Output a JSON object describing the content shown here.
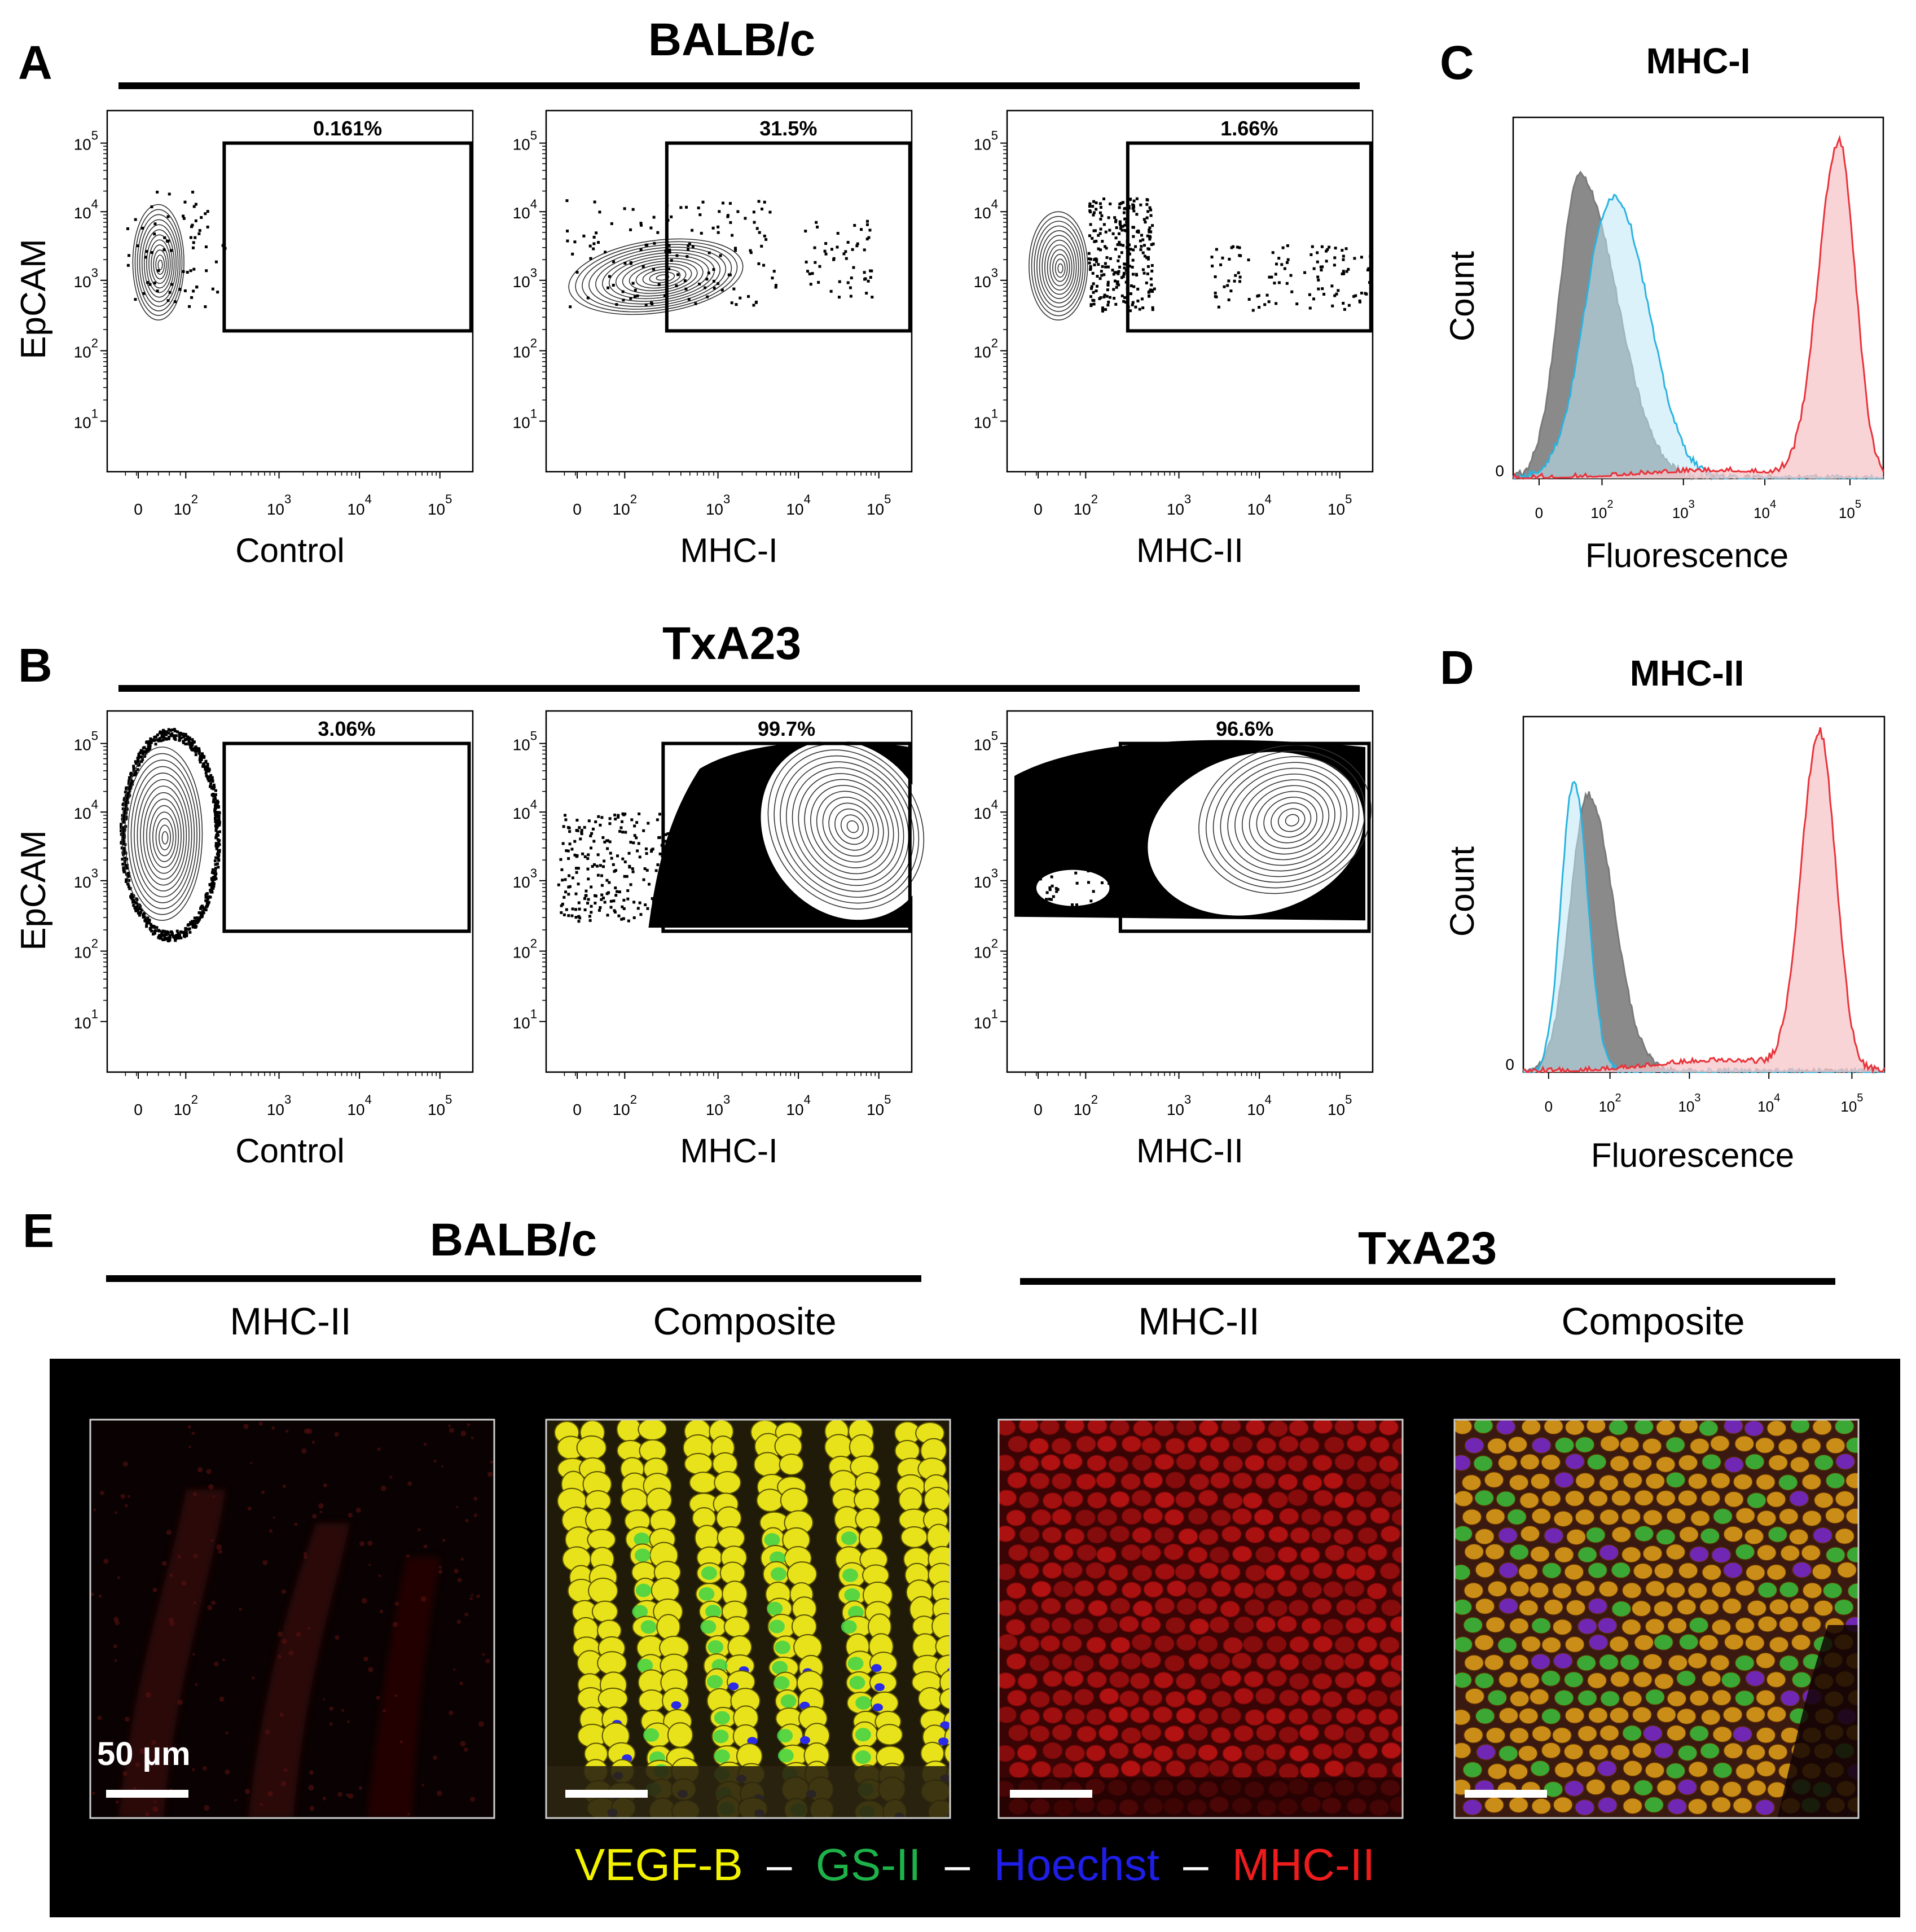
{
  "panels": {
    "A": {
      "letter": "A",
      "strain": "BALB/c",
      "ylabel": "EpCAM",
      "plots": [
        {
          "xlabel": "Control",
          "gate_pct": "0.161%"
        },
        {
          "xlabel": "MHC-I",
          "gate_pct": "31.5%"
        },
        {
          "xlabel": "MHC-II",
          "gate_pct": "1.66%"
        }
      ]
    },
    "B": {
      "letter": "B",
      "strain": "TxA23",
      "ylabel": "EpCAM",
      "plots": [
        {
          "xlabel": "Control",
          "gate_pct": "3.06%"
        },
        {
          "xlabel": "MHC-I",
          "gate_pct": "99.7%"
        },
        {
          "xlabel": "MHC-II",
          "gate_pct": "96.6%"
        }
      ]
    },
    "C": {
      "letter": "C",
      "title": "MHC-I",
      "ylabel": "Count",
      "xlabel": "Fluorescence",
      "zero_label": "0"
    },
    "D": {
      "letter": "D",
      "title": "MHC-II",
      "ylabel": "Count",
      "xlabel": "Fluorescence",
      "zero_label": "0"
    },
    "E": {
      "letter": "E",
      "groups": [
        {
          "strain": "BALB/c",
          "cols": [
            "MHC-II",
            "Composite"
          ]
        },
        {
          "strain": "TxA23",
          "cols": [
            "MHC-II",
            "Composite"
          ]
        }
      ],
      "scale_bar": "50 µm",
      "legend": [
        {
          "text": "VEGF-B",
          "color": "#f2f200"
        },
        {
          "text": "GS-II",
          "color": "#1db24a"
        },
        {
          "text": "Hoechst",
          "color": "#1e1ee8"
        },
        {
          "text": "MHC-II",
          "color": "#ee1c1c"
        }
      ],
      "legend_sep": "–"
    }
  },
  "chart_data": [
    {
      "type": "scatter",
      "title": "BALB/c",
      "subplots": [
        "Control",
        "MHC-I",
        "MHC-II"
      ],
      "ylabel": "EpCAM",
      "x_scale": "log (biexponential)",
      "y_scale": "log (biexponential)",
      "x_ticks": [
        "0",
        "10^2",
        "10^3",
        "10^4",
        "10^5"
      ],
      "y_ticks": [
        "10^1",
        "10^2",
        "10^3",
        "10^4",
        "10^5"
      ],
      "gate_percent": [
        0.161,
        31.5,
        1.66
      ]
    },
    {
      "type": "scatter",
      "title": "TxA23",
      "subplots": [
        "Control",
        "MHC-I",
        "MHC-II"
      ],
      "ylabel": "EpCAM",
      "x_scale": "log (biexponential)",
      "y_scale": "log (biexponential)",
      "x_ticks": [
        "0",
        "10^2",
        "10^3",
        "10^4",
        "10^5"
      ],
      "y_ticks": [
        "10^1",
        "10^2",
        "10^3",
        "10^4",
        "10^5"
      ],
      "gate_percent": [
        3.06,
        99.7,
        96.6
      ]
    },
    {
      "type": "area",
      "title": "MHC-I",
      "xlabel": "Fluorescence",
      "ylabel": "Count",
      "x_ticks": [
        "0",
        "10^2",
        "10^3",
        "10^4",
        "10^5"
      ],
      "series_colors": [
        "#8a8a8a",
        "#2ab3e0",
        "#e8333b"
      ]
    },
    {
      "type": "area",
      "title": "MHC-II",
      "xlabel": "Fluorescence",
      "ylabel": "Count",
      "x_ticks": [
        "0",
        "10^2",
        "10^3",
        "10^4",
        "10^5"
      ],
      "series_colors": [
        "#8a8a8a",
        "#2ab3e0",
        "#e8333b"
      ]
    }
  ]
}
